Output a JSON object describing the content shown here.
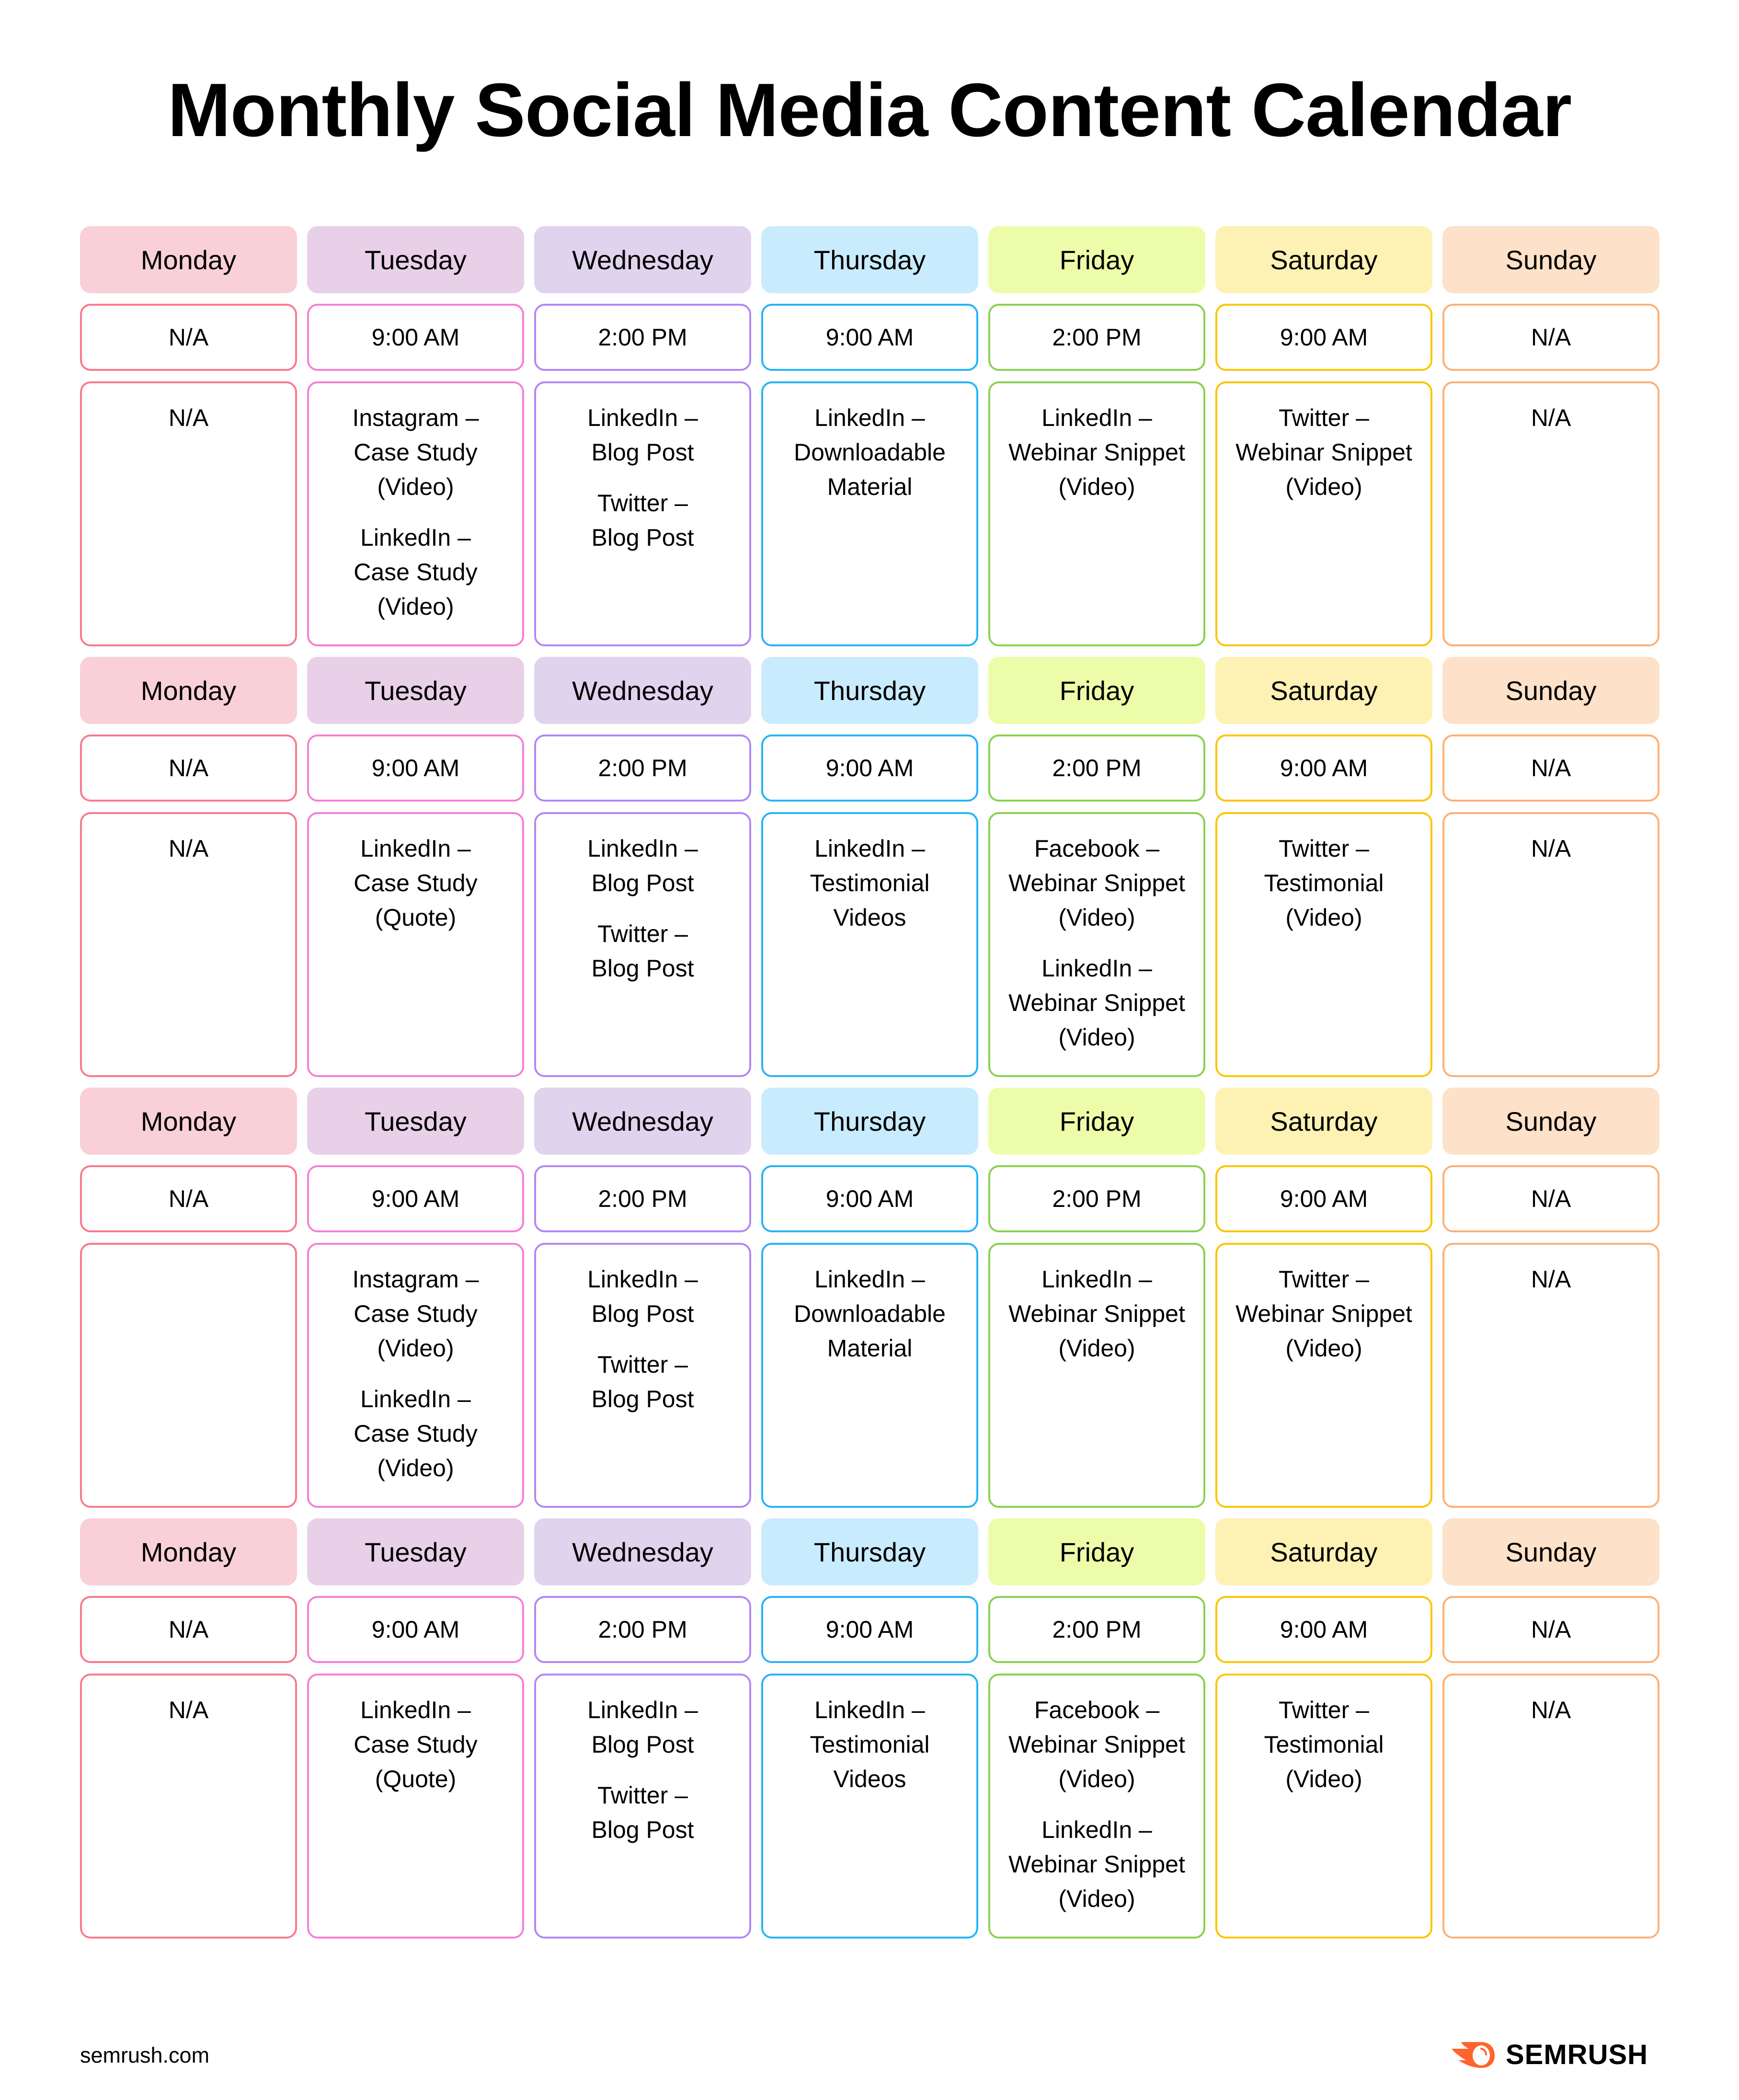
{
  "title": "Monthly Social Media Content Calendar",
  "days": [
    {
      "name": "Monday",
      "bg": "#f9d0d8",
      "border": "#f97a8e"
    },
    {
      "name": "Tuesday",
      "bg": "#e8d0e8",
      "border": "#f47fd6"
    },
    {
      "name": "Wednesday",
      "bg": "#dfd3ee",
      "border": "#b387f5"
    },
    {
      "name": "Thursday",
      "bg": "#c9ebfe",
      "border": "#27b4f5"
    },
    {
      "name": "Friday",
      "bg": "#edfca8",
      "border": "#8ad14f"
    },
    {
      "name": "Saturday",
      "bg": "#fdf1b4",
      "border": "#fcc500"
    },
    {
      "name": "Sunday",
      "bg": "#fde1c8",
      "border": "#fcb076"
    }
  ],
  "weeks": [
    {
      "times": [
        "N/A",
        "9:00 AM",
        "2:00 PM",
        "9:00 AM",
        "2:00 PM",
        "9:00 AM",
        "N/A"
      ],
      "posts": [
        [
          [
            "N/A"
          ]
        ],
        [
          [
            "Instagram –",
            "Case Study",
            "(Video)"
          ],
          [
            "LinkedIn –",
            "Case Study",
            "(Video)"
          ]
        ],
        [
          [
            "LinkedIn –",
            "Blog Post"
          ],
          [
            "Twitter –",
            "Blog Post"
          ]
        ],
        [
          [
            "LinkedIn –",
            "Downloadable",
            "Material"
          ]
        ],
        [
          [
            "LinkedIn –",
            "Webinar Snippet",
            "(Video)"
          ]
        ],
        [
          [
            "Twitter –",
            "Webinar Snippet",
            "(Video)"
          ]
        ],
        [
          [
            "N/A"
          ]
        ]
      ]
    },
    {
      "times": [
        "N/A",
        "9:00 AM",
        "2:00 PM",
        "9:00 AM",
        "2:00 PM",
        "9:00 AM",
        "N/A"
      ],
      "posts": [
        [
          [
            "N/A"
          ]
        ],
        [
          [
            "LinkedIn –",
            "Case Study",
            "(Quote)"
          ]
        ],
        [
          [
            "LinkedIn –",
            "Blog Post"
          ],
          [
            "Twitter –",
            "Blog Post"
          ]
        ],
        [
          [
            "LinkedIn –",
            "Testimonial",
            "Videos"
          ]
        ],
        [
          [
            "Facebook –",
            "Webinar Snippet",
            "(Video)"
          ],
          [
            "LinkedIn –",
            "Webinar Snippet",
            "(Video)"
          ]
        ],
        [
          [
            "Twitter –",
            "Testimonial",
            "(Video)"
          ]
        ],
        [
          [
            "N/A"
          ]
        ]
      ]
    },
    {
      "times": [
        "N/A",
        "9:00 AM",
        "2:00 PM",
        "9:00 AM",
        "2:00 PM",
        "9:00 AM",
        "N/A"
      ],
      "posts": [
        [],
        [
          [
            "Instagram –",
            "Case Study",
            "(Video)"
          ],
          [
            "LinkedIn –",
            "Case Study",
            "(Video)"
          ]
        ],
        [
          [
            "LinkedIn –",
            "Blog Post"
          ],
          [
            "Twitter –",
            "Blog Post"
          ]
        ],
        [
          [
            "LinkedIn –",
            "Downloadable",
            "Material"
          ]
        ],
        [
          [
            "LinkedIn –",
            "Webinar Snippet",
            "(Video)"
          ]
        ],
        [
          [
            "Twitter –",
            "Webinar Snippet",
            "(Video)"
          ]
        ],
        [
          [
            "N/A"
          ]
        ]
      ]
    },
    {
      "times": [
        "N/A",
        "9:00 AM",
        "2:00 PM",
        "9:00 AM",
        "2:00 PM",
        "9:00 AM",
        "N/A"
      ],
      "posts": [
        [
          [
            "N/A"
          ]
        ],
        [
          [
            "LinkedIn –",
            "Case Study",
            "(Quote)"
          ]
        ],
        [
          [
            "LinkedIn –",
            "Blog Post"
          ],
          [
            "Twitter –",
            "Blog Post"
          ]
        ],
        [
          [
            "LinkedIn –",
            "Testimonial",
            "Videos"
          ]
        ],
        [
          [
            "Facebook –",
            "Webinar Snippet",
            "(Video)"
          ],
          [
            "LinkedIn –",
            "Webinar Snippet",
            "(Video)"
          ]
        ],
        [
          [
            "Twitter –",
            "Testimonial",
            "(Video)"
          ]
        ],
        [
          [
            "N/A"
          ]
        ]
      ]
    }
  ],
  "footer": {
    "url": "semrush.com",
    "logo_text": "SEMRUSH",
    "logo_icon": "semrush-fireball-icon",
    "logo_color": "#ff642d"
  }
}
